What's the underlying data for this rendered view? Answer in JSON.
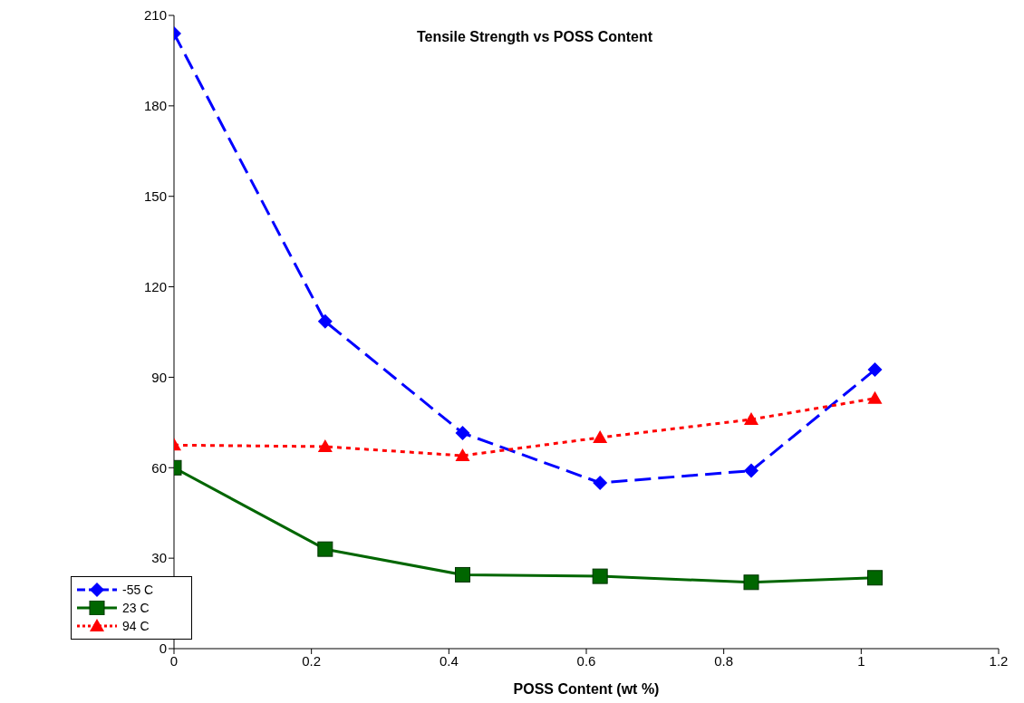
{
  "chart_data": {
    "type": "line",
    "title": "Tensile Strength vs POSS Content",
    "xlabel": "POSS Content (wt %)",
    "x": [
      0,
      0.22,
      0.42,
      0.62,
      0.84,
      1.02
    ],
    "series": [
      {
        "name": "-55 C",
        "color": "#0000ff",
        "marker": "diamond",
        "line_style": "dashed",
        "values": [
          204,
          108.5,
          71.5,
          55,
          59,
          92.5
        ]
      },
      {
        "name": "23 C",
        "color": "#006600",
        "marker": "square",
        "line_style": "solid",
        "values": [
          60,
          33,
          24.5,
          24,
          22,
          23.5
        ]
      },
      {
        "name": "94 C",
        "color": "#ff0000",
        "marker": "triangle",
        "line_style": "dotted",
        "values": [
          67.5,
          67,
          64,
          70,
          76,
          83
        ]
      }
    ],
    "xlim": [
      0,
      1.2
    ],
    "xticks": [
      0,
      0.2,
      0.4,
      0.6,
      0.8,
      1,
      1.2
    ],
    "ylim": [
      0,
      210
    ],
    "yticks": [
      0,
      30,
      60,
      90,
      120,
      150,
      180,
      210
    ],
    "grid": false,
    "legend": "bottom left"
  }
}
